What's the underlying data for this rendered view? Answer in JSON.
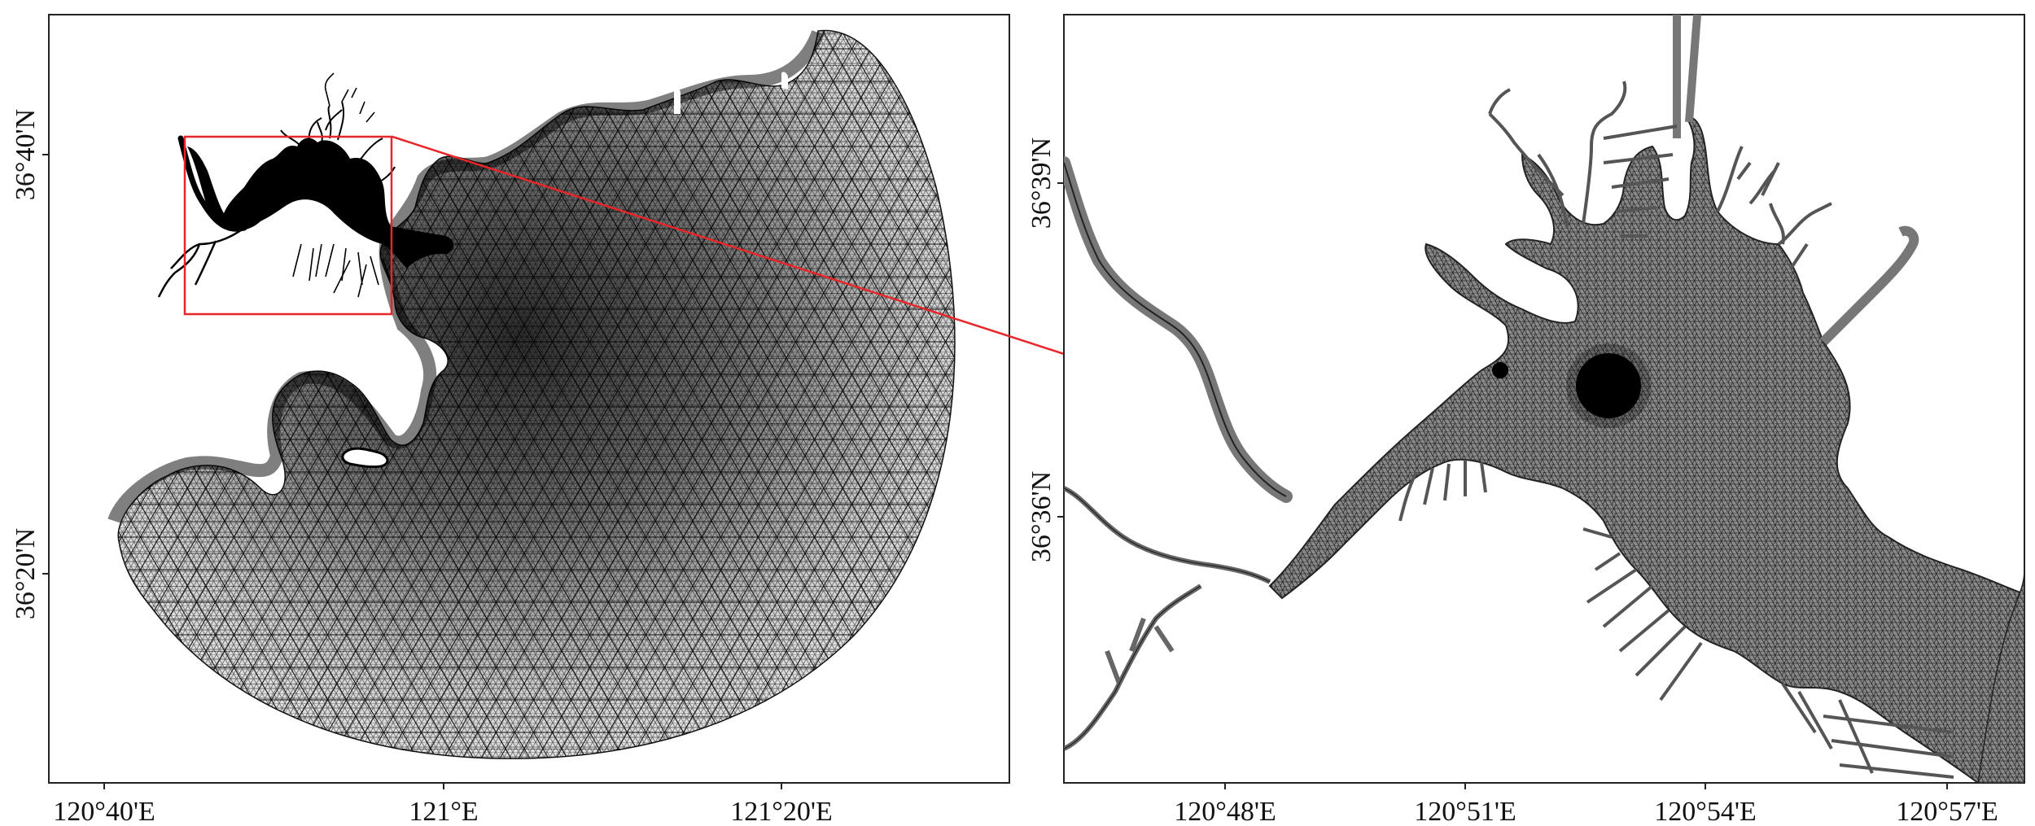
{
  "panels": {
    "overview": {
      "x_ticks": [
        "120°40'E",
        "121°E",
        "121°20'E"
      ],
      "y_ticks": [
        "36°40'N",
        "36°20'N"
      ]
    },
    "detail": {
      "x_ticks": [
        "120°48'E",
        "120°51'E",
        "120°54'E",
        "120°57'E"
      ],
      "y_ticks": [
        "36°39'N",
        "36°36'N"
      ]
    }
  },
  "colors": {
    "frame": "#222222",
    "mesh": "#111111",
    "highlight": "#e8262a",
    "background": "#ffffff"
  }
}
